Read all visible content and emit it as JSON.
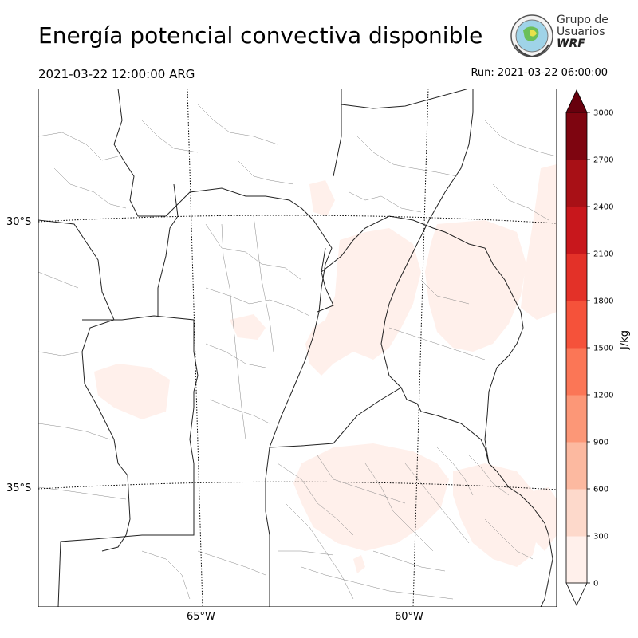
{
  "title": "Energía potencial convectiva disponible",
  "valid_time": "2021-03-22 12:00:00 ARG",
  "run_time": "Run: 2021-03-22 06:00:00",
  "logo": {
    "line1": "Grupo de",
    "line2": "Usuarios",
    "line3": "WRF"
  },
  "axes": {
    "lat_labels": [
      "30°S",
      "35°S"
    ],
    "lon_labels": [
      "65°W",
      "60°W"
    ]
  },
  "colorbar": {
    "unit": "J/kg",
    "ticks": [
      "0",
      "300",
      "600",
      "900",
      "1200",
      "1500",
      "1800",
      "2100",
      "2400",
      "2700",
      "3000"
    ],
    "colors": [
      "#fff0eb",
      "#fdd9cb",
      "#fcb9a0",
      "#fc9777",
      "#fb7656",
      "#f5523a",
      "#e33128",
      "#c8171c",
      "#a81016",
      "#7e0510"
    ],
    "over_color": "#67000d"
  },
  "chart_data": {
    "type": "heatmap",
    "title": "Energía potencial convectiva disponible",
    "variable_unit": "J/kg",
    "levels": [
      0,
      300,
      600,
      900,
      1200,
      1500,
      1800,
      2100,
      2400,
      2700,
      3000
    ],
    "observed_max_level": [
      0,
      300
    ],
    "grid": true
  }
}
